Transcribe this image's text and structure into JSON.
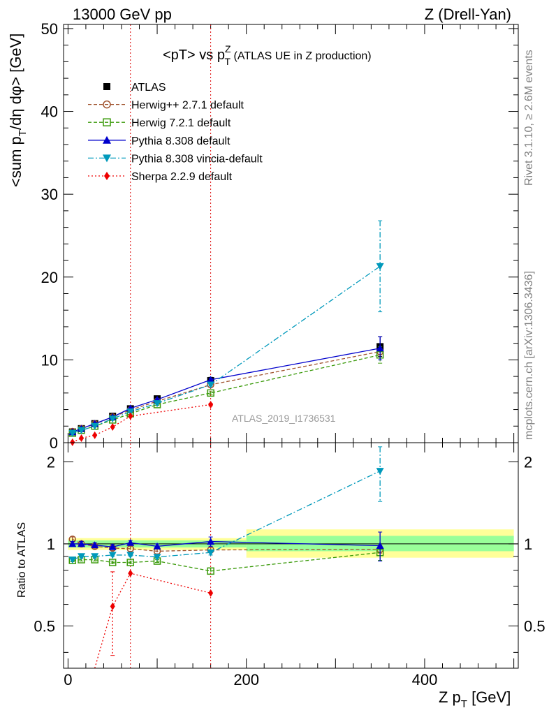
{
  "header": {
    "left": "13000 GeV pp",
    "right": "Z (Drell-Yan)"
  },
  "side_labels": {
    "rivet": "Rivet 3.1.10, ≥ 2.6M events",
    "mcplots": "mcplots.cern.ch [arXiv:1306.3436]"
  },
  "chart_data": [
    {
      "type": "line",
      "title": {
        "main": "<pT> vs p",
        "sup": "Z",
        "sub": "T",
        "rest": " (ATLAS UE in Z production)"
      },
      "ylabel": {
        "main": "<sum p",
        "sub": "T",
        "rest": "/dη dφ> [GeV]"
      },
      "watermark": "ATLAS_2019_I1736531",
      "xlim": [
        -5,
        505
      ],
      "ylim": [
        0,
        50.5
      ],
      "yticks": [
        0,
        10,
        20,
        30,
        40,
        50
      ],
      "vlines": [
        70,
        160
      ],
      "series": [
        {
          "name": "ATLAS",
          "color": "#000000",
          "marker": "square",
          "line": "none",
          "x": [
            5,
            15,
            30,
            50,
            70,
            100,
            160,
            350
          ],
          "y": [
            1.3,
            1.7,
            2.3,
            3.2,
            4.1,
            5.3,
            7.5,
            11.6
          ],
          "err": [
            0.1,
            0.1,
            0.1,
            0.15,
            0.2,
            0.3,
            0.4,
            1.2
          ]
        },
        {
          "name": "Herwig++ 2.7.1 default",
          "color": "#a0522d",
          "marker": "circle-open",
          "line": "dashed",
          "x": [
            5,
            15,
            30,
            50,
            70,
            100,
            160,
            350
          ],
          "y": [
            1.35,
            1.7,
            2.25,
            3.1,
            3.95,
            5.0,
            7.0,
            11.0
          ],
          "err": [
            0.05,
            0.05,
            0.05,
            0.05,
            0.1,
            0.1,
            0.15,
            0.4
          ]
        },
        {
          "name": "Herwig 7.2.1 default",
          "color": "#3a9a0a",
          "marker": "square-open",
          "line": "dashed",
          "x": [
            5,
            15,
            30,
            50,
            70,
            100,
            160,
            350
          ],
          "y": [
            1.15,
            1.5,
            2.0,
            2.75,
            3.5,
            4.6,
            6.0,
            10.6
          ],
          "err": [
            0.05,
            0.05,
            0.05,
            0.05,
            0.1,
            0.1,
            0.15,
            1.0
          ]
        },
        {
          "name": "Pythia 8.308 default",
          "color": "#0000cc",
          "marker": "triangle-up",
          "line": "solid",
          "x": [
            5,
            15,
            30,
            50,
            70,
            100,
            160,
            350
          ],
          "y": [
            1.3,
            1.7,
            2.3,
            3.1,
            4.15,
            5.2,
            7.6,
            11.4
          ],
          "err": [
            0.05,
            0.05,
            0.05,
            0.05,
            0.1,
            0.1,
            0.15,
            1.4
          ]
        },
        {
          "name": "Pythia 8.308 vincia-default",
          "color": "#0099bb",
          "marker": "triangle-down",
          "line": "dashdot",
          "x": [
            5,
            15,
            30,
            50,
            70,
            100,
            160,
            350
          ],
          "y": [
            1.15,
            1.5,
            2.0,
            2.9,
            3.75,
            4.75,
            7.0,
            21.3
          ],
          "err": [
            0.05,
            0.05,
            0.05,
            0.05,
            0.1,
            0.1,
            0.15,
            5.5
          ]
        },
        {
          "name": "Sherpa 2.2.9 default",
          "color": "#ee0000",
          "marker": "diamond",
          "line": "dotted",
          "x": [
            5,
            15,
            30,
            50,
            70,
            160
          ],
          "y": [
            0.05,
            0.55,
            0.9,
            1.9,
            3.2,
            4.6
          ],
          "err": [
            0.05,
            0.05,
            0.05,
            0.05,
            0.1,
            0.15
          ]
        }
      ]
    },
    {
      "type": "line",
      "ylabel": "Ratio to ATLAS",
      "xlabel": {
        "main": "Z p",
        "sub": "T",
        "rest": " [GeV]"
      },
      "xlim": [
        -5,
        505
      ],
      "xticks": [
        0,
        200,
        400
      ],
      "ylim_note": "log scale",
      "ylim": [
        0.35,
        2.35
      ],
      "yticks": [
        0.5,
        1,
        2
      ],
      "ytick_labels": [
        "0.5",
        "1",
        "2"
      ],
      "vlines": [
        70,
        160
      ],
      "bands": [
        {
          "x0": 0,
          "x1": 200,
          "inner": [
            0.97,
            1.03
          ],
          "outer": [
            0.95,
            1.05
          ]
        },
        {
          "x0": 200,
          "x1": 500,
          "inner": [
            0.94,
            1.07
          ],
          "outer": [
            0.89,
            1.13
          ]
        }
      ],
      "series": [
        {
          "name": "Herwig++ 2.7.1 default",
          "color": "#a0522d",
          "marker": "circle-open",
          "line": "dashed",
          "x": [
            5,
            15,
            30,
            50,
            70,
            100,
            160,
            350
          ],
          "y": [
            1.04,
            1.0,
            0.98,
            0.965,
            0.96,
            0.94,
            0.95,
            0.955
          ],
          "err": [
            0.02,
            0.02,
            0.02,
            0.02,
            0.02,
            0.02,
            0.02,
            0.03
          ]
        },
        {
          "name": "Herwig 7.2.1 default",
          "color": "#3a9a0a",
          "marker": "square-open",
          "line": "dashed",
          "x": [
            5,
            15,
            30,
            50,
            70,
            100,
            160,
            350
          ],
          "y": [
            0.87,
            0.875,
            0.875,
            0.855,
            0.855,
            0.865,
            0.795,
            0.93
          ],
          "err": [
            0.01,
            0.01,
            0.01,
            0.01,
            0.01,
            0.01,
            0.02,
            0.06
          ]
        },
        {
          "name": "Pythia 8.308 default",
          "color": "#0000cc",
          "marker": "triangle-up",
          "line": "solid",
          "x": [
            5,
            15,
            30,
            50,
            70,
            100,
            160,
            350
          ],
          "y": [
            1.0,
            1.0,
            0.99,
            0.975,
            1.01,
            0.98,
            1.02,
            0.985
          ],
          "err": [
            0.02,
            0.02,
            0.02,
            0.02,
            0.02,
            0.02,
            0.04,
            0.12
          ]
        },
        {
          "name": "Pythia 8.308 vincia-default",
          "color": "#0099bb",
          "marker": "triangle-down",
          "line": "dashdot",
          "x": [
            5,
            15,
            30,
            50,
            70,
            100,
            160,
            350
          ],
          "y": [
            0.875,
            0.9,
            0.9,
            0.91,
            0.91,
            0.895,
            0.93,
            1.85
          ],
          "err": [
            0.01,
            0.01,
            0.01,
            0.01,
            0.01,
            0.01,
            0.02,
            0.42
          ]
        },
        {
          "name": "Sherpa 2.2.9 default",
          "color": "#ee0000",
          "marker": "diamond",
          "line": "dotted",
          "x": [
            30,
            50,
            70,
            160
          ],
          "y": [
            0.28,
            0.59,
            0.78,
            0.66
          ],
          "err": [
            0.0,
            0.2,
            0.0,
            0.0
          ]
        }
      ]
    }
  ]
}
